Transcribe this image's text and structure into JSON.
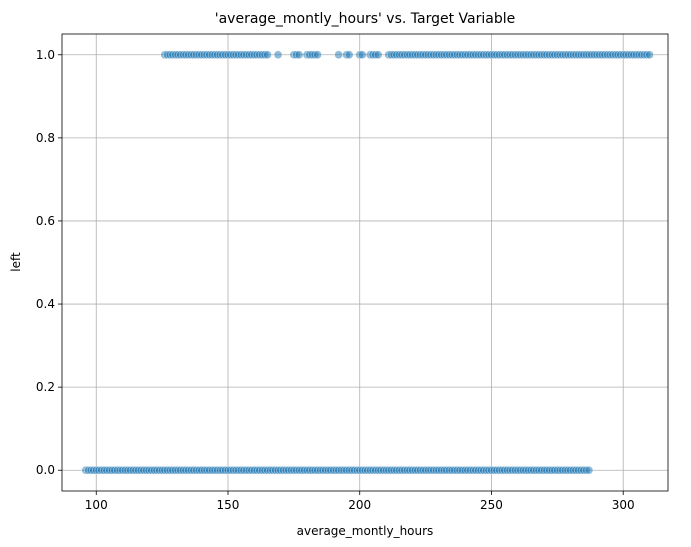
{
  "chart_data": {
    "type": "scatter",
    "title": "'average_montly_hours' vs. Target Variable",
    "xlabel": "average_montly_hours",
    "ylabel": "left",
    "xlim": [
      87,
      317
    ],
    "ylim": [
      -0.05,
      1.05
    ],
    "xticks": [
      100,
      150,
      200,
      250,
      300
    ],
    "xtick_labels": [
      "100",
      "150",
      "200",
      "250",
      "300"
    ],
    "yticks": [
      0.0,
      0.2,
      0.4,
      0.6,
      0.8,
      1.0
    ],
    "ytick_labels": [
      "0.0",
      "0.2",
      "0.4",
      "0.6",
      "0.8",
      "1.0"
    ],
    "grid": true,
    "marker_color": "#1f77b4",
    "marker_alpha": 0.5,
    "series": [
      {
        "y": 1.0,
        "x": [
          126,
          127,
          128,
          129,
          130,
          131,
          132,
          133,
          134,
          135,
          136,
          137,
          138,
          139,
          140,
          141,
          142,
          143,
          144,
          145,
          146,
          147,
          148,
          149,
          150,
          151,
          152,
          153,
          154,
          155,
          156,
          157,
          158,
          159,
          160,
          161,
          162,
          163,
          164,
          165,
          169,
          175,
          176,
          177,
          180,
          181,
          182,
          183,
          184,
          192,
          195,
          196,
          200,
          201,
          204,
          205,
          206,
          207,
          211,
          212,
          213,
          214,
          215,
          216,
          217,
          218,
          219,
          220,
          221,
          222,
          223,
          224,
          225,
          226,
          227,
          228,
          229,
          230,
          231,
          232,
          233,
          234,
          235,
          236,
          237,
          238,
          239,
          240,
          241,
          242,
          243,
          244,
          245,
          246,
          247,
          248,
          249,
          250,
          251,
          252,
          253,
          254,
          255,
          256,
          257,
          258,
          259,
          260,
          261,
          262,
          263,
          264,
          265,
          266,
          267,
          268,
          269,
          270,
          271,
          272,
          273,
          274,
          275,
          276,
          277,
          278,
          279,
          280,
          281,
          282,
          283,
          284,
          285,
          286,
          287,
          288,
          289,
          290,
          291,
          292,
          293,
          294,
          295,
          296,
          297,
          298,
          299,
          300,
          301,
          302,
          303,
          304,
          305,
          306,
          307,
          308,
          309,
          310
        ]
      },
      {
        "y": 0.0,
        "x": [
          96,
          97,
          98,
          99,
          100,
          101,
          102,
          103,
          104,
          105,
          106,
          107,
          108,
          109,
          110,
          111,
          112,
          113,
          114,
          115,
          116,
          117,
          118,
          119,
          120,
          121,
          122,
          123,
          124,
          125,
          126,
          127,
          128,
          129,
          130,
          131,
          132,
          133,
          134,
          135,
          136,
          137,
          138,
          139,
          140,
          141,
          142,
          143,
          144,
          145,
          146,
          147,
          148,
          149,
          150,
          151,
          152,
          153,
          154,
          155,
          156,
          157,
          158,
          159,
          160,
          161,
          162,
          163,
          164,
          165,
          166,
          167,
          168,
          169,
          170,
          171,
          172,
          173,
          174,
          175,
          176,
          177,
          178,
          179,
          180,
          181,
          182,
          183,
          184,
          185,
          186,
          187,
          188,
          189,
          190,
          191,
          192,
          193,
          194,
          195,
          196,
          197,
          198,
          199,
          200,
          201,
          202,
          203,
          204,
          205,
          206,
          207,
          208,
          209,
          210,
          211,
          212,
          213,
          214,
          215,
          216,
          217,
          218,
          219,
          220,
          221,
          222,
          223,
          224,
          225,
          226,
          227,
          228,
          229,
          230,
          231,
          232,
          233,
          234,
          235,
          236,
          237,
          238,
          239,
          240,
          241,
          242,
          243,
          244,
          245,
          246,
          247,
          248,
          249,
          250,
          251,
          252,
          253,
          254,
          255,
          256,
          257,
          258,
          259,
          260,
          261,
          262,
          263,
          264,
          265,
          266,
          267,
          268,
          269,
          270,
          271,
          272,
          273,
          274,
          275,
          276,
          277,
          278,
          279,
          280,
          281,
          282,
          283,
          284,
          285,
          286,
          287
        ]
      }
    ]
  }
}
